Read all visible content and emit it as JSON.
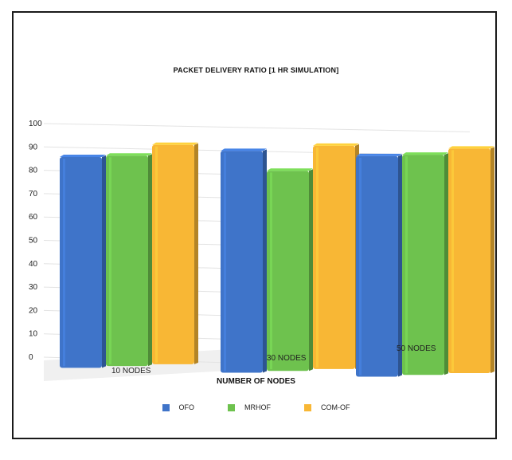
{
  "chart_data": {
    "type": "bar",
    "title": "PACKET DELIVERY RATIO [1 HR SIMULATION]",
    "xlabel": "NUMBER OF NODES",
    "ylabel": "",
    "categories": [
      "10 NODES",
      "30 NODES",
      "50 NODES"
    ],
    "series": [
      {
        "name": "OFO",
        "values": [
          86,
          90,
          89
        ],
        "color": "#3f74c9"
      },
      {
        "name": "MRHOF",
        "values": [
          87,
          82,
          90
        ],
        "color": "#6ec24e"
      },
      {
        "name": "COM-OF",
        "values": [
          92,
          93,
          93
        ],
        "color": "#f8b735"
      }
    ],
    "ylim": [
      0,
      100
    ],
    "yticks": [
      "100",
      "90",
      "80",
      "70",
      "60",
      "50",
      "40",
      "30",
      "20",
      "10",
      "0"
    ],
    "grid": true,
    "legend": "bottom"
  }
}
